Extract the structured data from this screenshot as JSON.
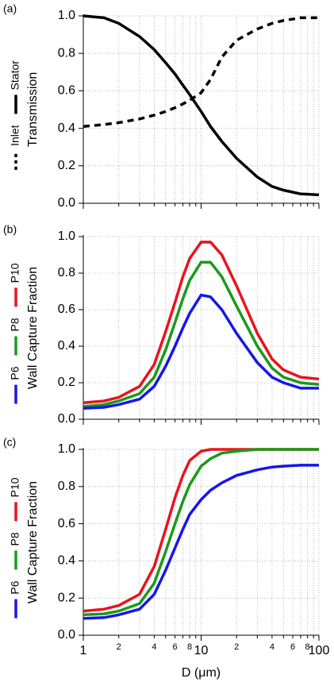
{
  "chart_data": [
    {
      "type": "line",
      "panel_label": "(a)",
      "ylabel": "Transmission",
      "log_x": true,
      "grid": true,
      "xlim": [
        1,
        100
      ],
      "ylim": [
        0,
        1
      ],
      "yticks": [
        {
          "value": 0,
          "label": "0.0"
        },
        0.2,
        0.4,
        0.6,
        0.8,
        {
          "value": 1,
          "label": "1.0"
        }
      ],
      "x": [
        1,
        1.5,
        2,
        3,
        4,
        5,
        6,
        7,
        8,
        10,
        12,
        15,
        20,
        30,
        40,
        50,
        70,
        100
      ],
      "series": [
        {
          "name": "Stator",
          "color": "#000000",
          "dash": "solid",
          "values": [
            1.0,
            0.99,
            0.96,
            0.89,
            0.82,
            0.75,
            0.69,
            0.63,
            0.58,
            0.49,
            0.41,
            0.33,
            0.24,
            0.14,
            0.09,
            0.07,
            0.05,
            0.045
          ]
        },
        {
          "name": "Inlet",
          "color": "#000000",
          "dash": "dashed",
          "values": [
            0.41,
            0.42,
            0.43,
            0.45,
            0.47,
            0.49,
            0.51,
            0.53,
            0.55,
            0.59,
            0.66,
            0.78,
            0.87,
            0.93,
            0.96,
            0.975,
            0.99,
            0.99
          ]
        }
      ]
    },
    {
      "type": "line",
      "panel_label": "(b)",
      "ylabel": "Wall Capture Fraction",
      "log_x": true,
      "grid": true,
      "xlim": [
        1,
        100
      ],
      "ylim": [
        0,
        1
      ],
      "yticks": [
        {
          "value": 0,
          "label": "0.0"
        },
        0.2,
        0.4,
        0.6,
        0.8,
        {
          "value": 1,
          "label": "1.0"
        }
      ],
      "x": [
        1,
        1.5,
        2,
        3,
        4,
        5,
        6,
        7,
        8,
        10,
        12,
        15,
        20,
        30,
        40,
        50,
        70,
        100
      ],
      "series": [
        {
          "name": "P10",
          "color": "#e8141c",
          "dash": "solid",
          "values": [
            0.09,
            0.1,
            0.12,
            0.18,
            0.3,
            0.48,
            0.64,
            0.78,
            0.88,
            0.97,
            0.97,
            0.9,
            0.73,
            0.47,
            0.33,
            0.27,
            0.23,
            0.22
          ]
        },
        {
          "name": "P8",
          "color": "#1a9a1a",
          "dash": "solid",
          "values": [
            0.07,
            0.08,
            0.1,
            0.14,
            0.23,
            0.38,
            0.53,
            0.66,
            0.76,
            0.86,
            0.86,
            0.78,
            0.62,
            0.4,
            0.28,
            0.23,
            0.2,
            0.19
          ]
        },
        {
          "name": "P6",
          "color": "#1616e8",
          "dash": "solid",
          "values": [
            0.06,
            0.065,
            0.08,
            0.11,
            0.18,
            0.29,
            0.4,
            0.5,
            0.58,
            0.68,
            0.67,
            0.6,
            0.47,
            0.31,
            0.23,
            0.2,
            0.17,
            0.17
          ]
        }
      ]
    },
    {
      "type": "line",
      "panel_label": "(c)",
      "ylabel": "Wall Capture Fraction",
      "xlabel": "D (μm)",
      "log_x": true,
      "grid": true,
      "xlim": [
        1,
        100
      ],
      "ylim": [
        0,
        1
      ],
      "yticks": [
        {
          "value": 0,
          "label": "0.0"
        },
        0.2,
        0.4,
        0.6,
        0.8,
        {
          "value": 1,
          "label": "1.0"
        }
      ],
      "xticks": [
        1,
        2,
        4,
        6,
        8,
        10,
        {
          "value": 20,
          "label": "2"
        },
        {
          "value": 40,
          "label": "4"
        },
        {
          "value": 60,
          "label": "6"
        },
        {
          "value": 80,
          "label": "8"
        },
        100
      ],
      "xminor": [
        3,
        5,
        7,
        9,
        30,
        50,
        70,
        90
      ],
      "x": [
        1,
        1.5,
        2,
        3,
        4,
        5,
        6,
        7,
        8,
        10,
        12,
        15,
        20,
        30,
        40,
        50,
        70,
        100
      ],
      "series": [
        {
          "name": "P10",
          "color": "#e8141c",
          "dash": "solid",
          "values": [
            0.13,
            0.14,
            0.16,
            0.22,
            0.37,
            0.57,
            0.74,
            0.86,
            0.94,
            0.99,
            1.0,
            1.0,
            1.0,
            1.0,
            1.0,
            1.0,
            1.0,
            1.0
          ]
        },
        {
          "name": "P8",
          "color": "#1a9a1a",
          "dash": "solid",
          "values": [
            0.11,
            0.115,
            0.13,
            0.17,
            0.28,
            0.45,
            0.6,
            0.72,
            0.81,
            0.91,
            0.95,
            0.98,
            0.99,
            1.0,
            1.0,
            1.0,
            1.0,
            1.0
          ]
        },
        {
          "name": "P6",
          "color": "#1616e8",
          "dash": "solid",
          "values": [
            0.09,
            0.095,
            0.11,
            0.14,
            0.22,
            0.35,
            0.47,
            0.57,
            0.65,
            0.73,
            0.78,
            0.82,
            0.86,
            0.89,
            0.905,
            0.91,
            0.915,
            0.915
          ]
        }
      ]
    }
  ]
}
